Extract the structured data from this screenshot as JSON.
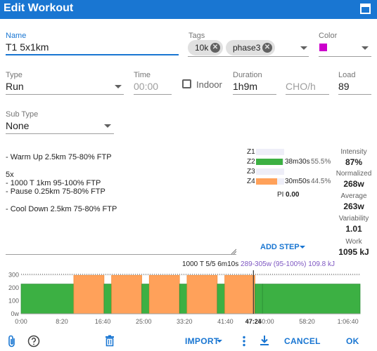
{
  "dialog": {
    "title": "Edit Workout"
  },
  "form": {
    "name": {
      "label": "Name",
      "value": "T1 5x1km"
    },
    "tags": {
      "label": "Tags",
      "chips": [
        "10k",
        "phase3"
      ]
    },
    "color": {
      "label": "Color",
      "value": "#cc00cc"
    },
    "type": {
      "label": "Type",
      "value": "Run"
    },
    "time": {
      "label": "Time",
      "placeholder": "00:00"
    },
    "indoor": {
      "label": "Indoor",
      "checked": false
    },
    "duration": {
      "label": "Duration",
      "value": "1h9m"
    },
    "cho": {
      "placeholder": "CHO/h"
    },
    "load": {
      "label": "Load",
      "value": "89"
    },
    "subtype": {
      "label": "Sub Type",
      "value": "None"
    }
  },
  "description": [
    "- Warm Up 2.5km 75-80% FTP",
    "",
    "5x",
    "- 1000 T 1km 95-100% FTP",
    "- Pause 0.25km 75-80% FTP",
    "",
    "- Cool Down 2.5km 75-80% FTP"
  ],
  "zones": {
    "rows": [
      {
        "label": "Z1",
        "time": "",
        "pct": "",
        "fraction": 0
      },
      {
        "label": "Z2",
        "time": "38m30s",
        "pct": "55.5%",
        "fraction": 0.555,
        "color": "#3cb043"
      },
      {
        "label": "Z3",
        "time": "",
        "pct": "",
        "fraction": 0
      },
      {
        "label": "Z4",
        "time": "30m50s",
        "pct": "44.5%",
        "fraction": 0.445,
        "color": "#ffa15a"
      }
    ],
    "pi_label": "PI",
    "pi_value": "0.00"
  },
  "stats": [
    {
      "label": "Intensity",
      "value": "87%"
    },
    {
      "label": "Normalized",
      "value": "268w"
    },
    {
      "label": "Average",
      "value": "263w"
    },
    {
      "label": "Variability",
      "value": "1.01"
    },
    {
      "label": "Work",
      "value": "1095 kJ"
    }
  ],
  "add_step": {
    "label": "ADD STEP"
  },
  "step_info": {
    "base": "1000 T 5/5 6m10s",
    "highlight": "289-305w (95-100%) 109.8 kJ"
  },
  "chart_data": {
    "type": "area",
    "y_ticks": [
      "300",
      "200",
      "100",
      "0w"
    ],
    "ylim": [
      0,
      320
    ],
    "threshold": 305,
    "x_ticks": [
      "0:00",
      "8:20",
      "16:40",
      "25:00",
      "33:20",
      "41:40",
      "47:24",
      "50:00",
      "58:20",
      "1:06:40"
    ],
    "xlim_seconds": [
      0,
      4150
    ],
    "cursor_seconds": 2844,
    "segments": [
      {
        "start": 0,
        "end": 645,
        "watts": 230,
        "zone": "Z2"
      },
      {
        "start": 645,
        "end": 1015,
        "watts": 297,
        "zone": "Z4"
      },
      {
        "start": 1015,
        "end": 1107,
        "watts": 230,
        "zone": "Z2"
      },
      {
        "start": 1107,
        "end": 1477,
        "watts": 297,
        "zone": "Z4"
      },
      {
        "start": 1477,
        "end": 1569,
        "watts": 230,
        "zone": "Z2"
      },
      {
        "start": 1569,
        "end": 1939,
        "watts": 297,
        "zone": "Z4"
      },
      {
        "start": 1939,
        "end": 2031,
        "watts": 230,
        "zone": "Z2"
      },
      {
        "start": 2031,
        "end": 2401,
        "watts": 297,
        "zone": "Z4"
      },
      {
        "start": 2401,
        "end": 2493,
        "watts": 230,
        "zone": "Z2"
      },
      {
        "start": 2493,
        "end": 2863,
        "watts": 297,
        "zone": "Z4"
      },
      {
        "start": 2863,
        "end": 2955,
        "watts": 230,
        "zone": "Z2"
      },
      {
        "start": 2955,
        "end": 4150,
        "watts": 230,
        "zone": "Z2"
      }
    ],
    "colors": {
      "Z2": "#3cb043",
      "Z4": "#ffa15a",
      "edge_z2": "#2a8a34",
      "edge_z4": "#f28c38"
    }
  },
  "footer": {
    "import_label": "IMPORT",
    "cancel_label": "CANCEL",
    "ok_label": "OK"
  }
}
